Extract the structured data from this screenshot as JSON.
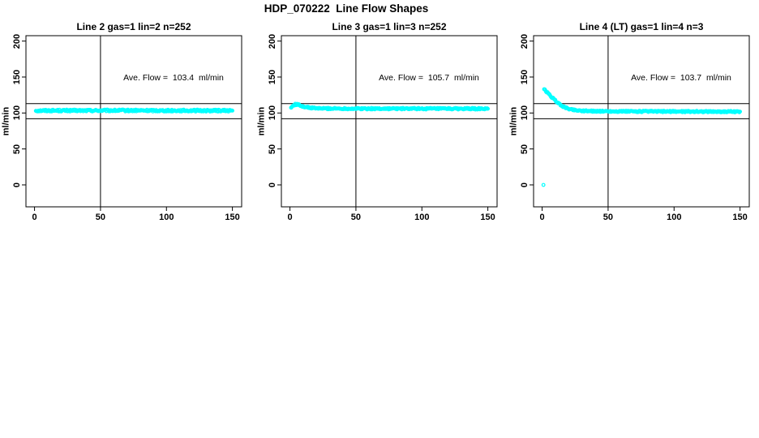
{
  "figure": {
    "title": "HDP_070222  Line Flow Shapes"
  },
  "colors": {
    "data_marker": "#00ffff",
    "axis": "#000000",
    "background": "#ffffff"
  },
  "chart_data": {
    "type": "scatter",
    "title": "HDP_070222  Line Flow Shapes",
    "xlabel": "",
    "ylabel": "ml/min",
    "xlim": [
      -6.5,
      157
    ],
    "ylim": [
      -30.5,
      207.5
    ],
    "x_ticks": [
      0,
      50,
      100,
      150
    ],
    "y_ticks": [
      0,
      50,
      100,
      150,
      200
    ],
    "grid": false,
    "legend": "none",
    "h_ref_lines": [
      113,
      92
    ],
    "v_ref_line": 50,
    "marker": {
      "shape": "open-circle",
      "color": "#00ffff",
      "radius_px": 1.8,
      "stroke_px": 1.2
    },
    "panels": [
      {
        "title": "Line 2 gas=1 lin=2 n=252",
        "annotation": "Ave. Flow =  103.4  ml/min",
        "ave_flow_ml_min": 103.4,
        "n": 252,
        "x_range": [
          1,
          150
        ],
        "n_markers": 300,
        "jitter": 1.3,
        "series_keypoints": [
          [
            1,
            103.2
          ],
          [
            10,
            103.4
          ],
          [
            30,
            103.3
          ],
          [
            60,
            103.5
          ],
          [
            90,
            103.4
          ],
          [
            120,
            103.3
          ],
          [
            150,
            103.3
          ]
        ],
        "isolated_points": []
      },
      {
        "title": "Line 3 gas=1 lin=3 n=252",
        "annotation": "Ave. Flow =  105.7  ml/min",
        "ave_flow_ml_min": 105.7,
        "n": 252,
        "x_range": [
          1,
          150
        ],
        "n_markers": 300,
        "jitter": 1.1,
        "series_keypoints": [
          [
            1,
            107.5
          ],
          [
            2,
            109.5
          ],
          [
            3,
            111
          ],
          [
            4,
            111.8
          ],
          [
            5,
            112
          ],
          [
            6,
            111.6
          ],
          [
            8,
            110.4
          ],
          [
            10,
            109.2
          ],
          [
            12,
            108.2
          ],
          [
            15,
            107.2
          ],
          [
            18,
            106.7
          ],
          [
            22,
            106.4
          ],
          [
            30,
            106.2
          ],
          [
            60,
            106
          ],
          [
            100,
            106
          ],
          [
            150,
            105.8
          ]
        ],
        "isolated_points": [
          [
            0.8,
            107.5
          ]
        ]
      },
      {
        "title": "Line 4 (LT) gas=1 lin=4 n=3",
        "annotation": "Ave. Flow =  103.7  ml/min",
        "ave_flow_ml_min": 103.7,
        "n": 3,
        "x_range": [
          1.5,
          150
        ],
        "n_markers": 300,
        "jitter": 1.0,
        "series_keypoints": [
          [
            1.5,
            133
          ],
          [
            3,
            130
          ],
          [
            5,
            126.5
          ],
          [
            7,
            122.5
          ],
          [
            9,
            119
          ],
          [
            11,
            115.5
          ],
          [
            13,
            112.5
          ],
          [
            15,
            110
          ],
          [
            17,
            108
          ],
          [
            19,
            106.5
          ],
          [
            22,
            105
          ],
          [
            25,
            104
          ],
          [
            28,
            103.4
          ],
          [
            32,
            103
          ],
          [
            38,
            102.6
          ],
          [
            45,
            102.4
          ],
          [
            60,
            102.2
          ],
          [
            90,
            102.1
          ],
          [
            120,
            102
          ],
          [
            150,
            101.8
          ]
        ],
        "isolated_points": [
          [
            1,
            0
          ]
        ]
      }
    ]
  }
}
